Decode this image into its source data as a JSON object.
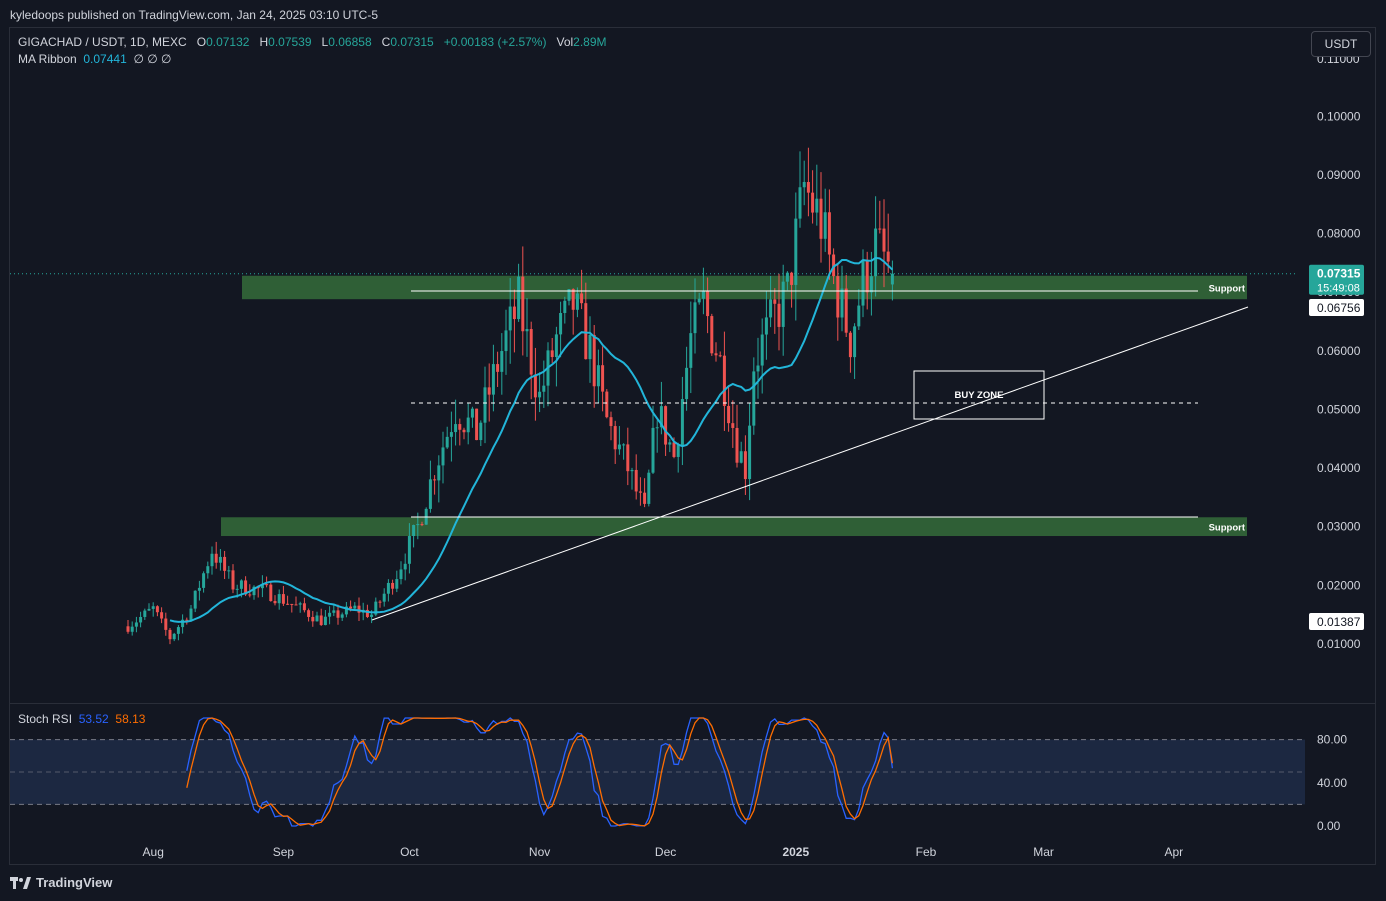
{
  "header": {
    "publisher": "kyledoops published on TradingView.com, Jan 24, 2025 03:10 UTC-5"
  },
  "legend": {
    "symbol": "GIGACHAD / USDT, 1D, MEXC",
    "o_label": "O",
    "o_value": "0.07132",
    "h_label": "H",
    "h_value": "0.07539",
    "l_label": "L",
    "l_value": "0.06858",
    "c_label": "C",
    "c_value": "0.07315",
    "change": "+0.00183 (+2.57%)",
    "vol_label": "Vol",
    "vol_value": "2.89M",
    "ma_label": "MA Ribbon",
    "ma_value": "0.07441",
    "ma_empty": "∅ ∅ ∅"
  },
  "currency_button": "USDT",
  "price_tags": {
    "last_price": "0.07315",
    "countdown": "15:49:08",
    "level_upper": "0.06756",
    "level_lower": "0.01387",
    "top_partial": "0.11000"
  },
  "annotations": {
    "support_upper": "Support",
    "support_lower": "Support",
    "buy_zone": "BUY ZONE"
  },
  "rsi": {
    "title": "Stoch RSI",
    "k_value": "53.52",
    "d_value": "58.13",
    "k_color": "#2962ff",
    "d_color": "#ff6d00",
    "upper_band": 80,
    "lower_band": 20,
    "axis_labels": [
      "80.00",
      "40.00",
      "0.00"
    ]
  },
  "colors": {
    "up": "#26a69a",
    "down": "#ef5350",
    "ma": "#22b5d9",
    "support_zone": "#2f5f36",
    "background": "#131722"
  },
  "footer": {
    "brand": "TradingView"
  },
  "chart_data": {
    "type": "candlestick",
    "title": "GIGACHAD / USDT, 1D, MEXC",
    "ylim": [
      0,
      0.11
    ],
    "y_ticks": [
      "0.10000",
      "0.09000",
      "0.08000",
      "0.07000",
      "0.06000",
      "0.05000",
      "0.04000",
      "0.03000",
      "0.02000",
      "0.01000"
    ],
    "x_ticks": [
      "Aug",
      "Sep",
      "Oct",
      "Nov",
      "Dec",
      "2025",
      "Feb",
      "Mar",
      "Apr"
    ],
    "series": [
      {
        "name": "MA Ribbon",
        "last": 0.07441
      },
      {
        "name": "GIGACHAD / USDT",
        "last": 0.07315
      }
    ],
    "support_zones": [
      [
        0.0688,
        0.0728
      ],
      [
        0.0284,
        0.0316
      ]
    ],
    "buy_zone": [
      0.0485,
      0.0565
    ],
    "price_path": [
      [
        "Jul 26",
        0.013
      ],
      [
        "Aug 1",
        0.016
      ],
      [
        "Aug 5",
        0.011
      ],
      [
        "Aug 10",
        0.016
      ],
      [
        "Aug 15",
        0.026
      ],
      [
        "Aug 20",
        0.02
      ],
      [
        "Aug 28",
        0.019
      ],
      [
        "Sep 5",
        0.016
      ],
      [
        "Sep 10",
        0.014
      ],
      [
        "Sep 18",
        0.016
      ],
      [
        "Sep 22",
        0.015
      ],
      [
        "Sep 28",
        0.022
      ],
      [
        "Oct 3",
        0.03
      ],
      [
        "Oct 7",
        0.04
      ],
      [
        "Oct 12",
        0.05
      ],
      [
        "Oct 17",
        0.046
      ],
      [
        "Oct 23",
        0.06
      ],
      [
        "Oct 27",
        0.068
      ],
      [
        "Nov 1",
        0.052
      ],
      [
        "Nov 5",
        0.062
      ],
      [
        "Nov 9",
        0.068
      ],
      [
        "Nov 13",
        0.06
      ],
      [
        "Nov 17",
        0.048
      ],
      [
        "Nov 22",
        0.04
      ],
      [
        "Nov 26",
        0.032
      ],
      [
        "Nov 29",
        0.05
      ],
      [
        "Dec 3",
        0.042
      ],
      [
        "Dec 7",
        0.062
      ],
      [
        "Dec 10",
        0.068
      ],
      [
        "Dec 14",
        0.058
      ],
      [
        "Dec 18",
        0.044
      ],
      [
        "Dec 20",
        0.04
      ],
      [
        "Dec 22",
        0.058
      ],
      [
        "Dec 27",
        0.066
      ],
      [
        "Dec 30",
        0.07
      ],
      [
        "Jan 3",
        0.088
      ],
      [
        "Jan 7",
        0.082
      ],
      [
        "Jan 10",
        0.072
      ],
      [
        "Jan 14",
        0.062
      ],
      [
        "Jan 17",
        0.072
      ],
      [
        "Jan 20",
        0.078
      ],
      [
        "Jan 24",
        0.07315
      ]
    ]
  }
}
